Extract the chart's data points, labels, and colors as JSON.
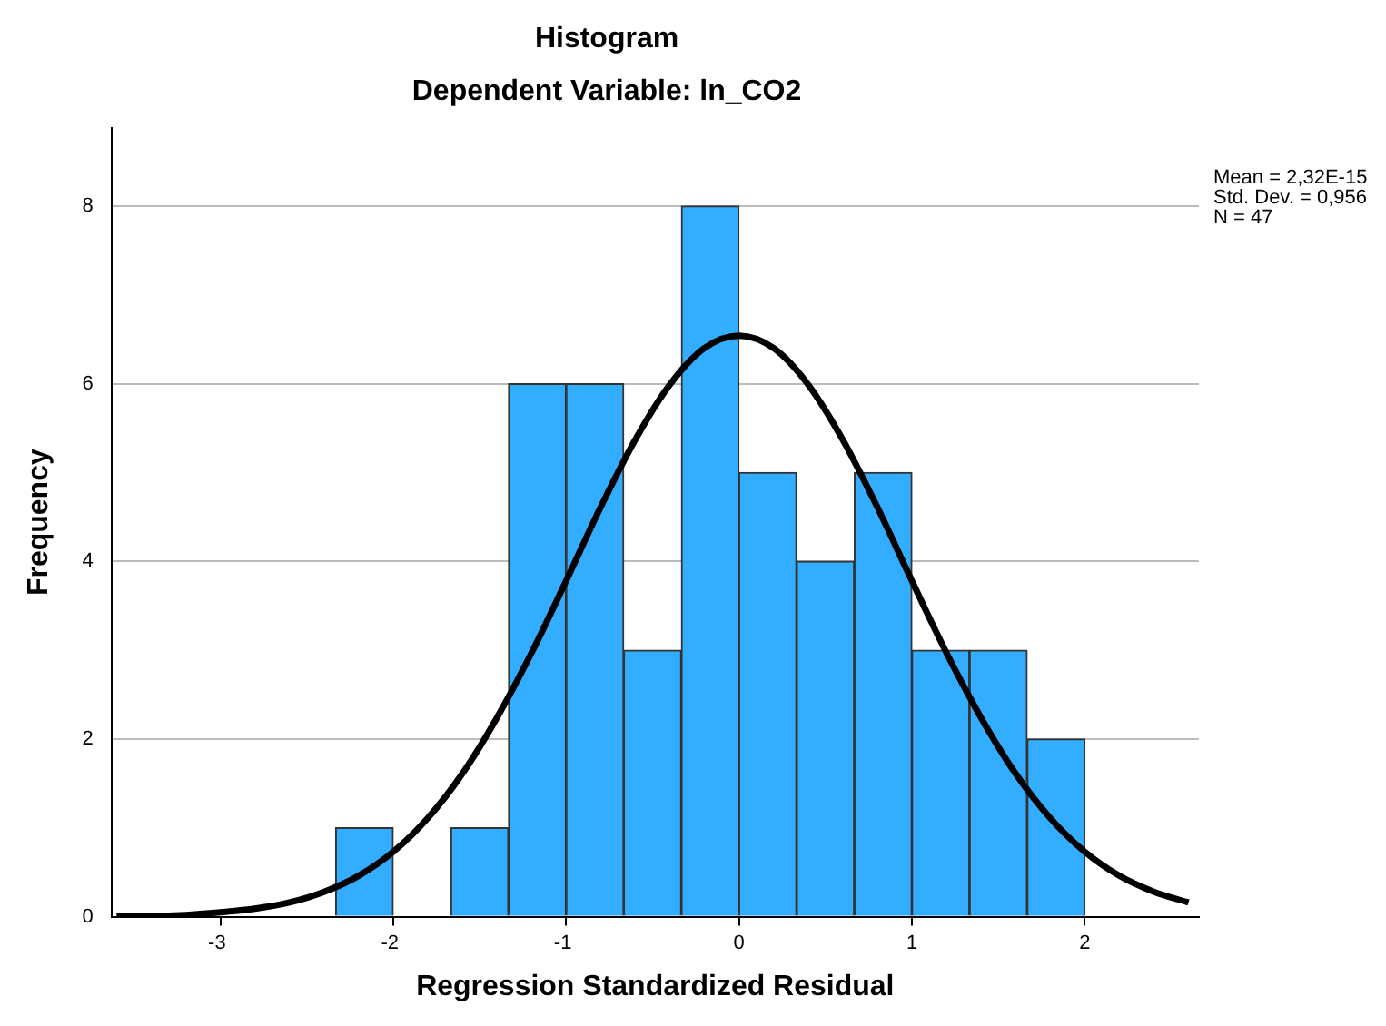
{
  "chart_data": {
    "type": "histogram",
    "title": "Histogram",
    "subtitle": "Dependent Variable: ln_CO2",
    "xlabel": "Regression Standardized Residual",
    "ylabel": "Frequency",
    "bins": [
      -2.333,
      -2,
      -1.667,
      -1.333,
      -1,
      -0.667,
      -0.333,
      0,
      0.333,
      0.667,
      1,
      1.333,
      1.667,
      2
    ],
    "values": [
      1,
      0,
      1,
      6,
      6,
      3,
      8,
      5,
      4,
      5,
      3,
      3,
      2
    ],
    "color": "#33adff",
    "series": [
      {
        "type": "line",
        "color": "#000000",
        "x": [
          -3.6,
          -3.4,
          -3.2,
          -3,
          -2.8,
          -2.6,
          -2.4,
          -2.2,
          -2,
          -1.8,
          -1.6,
          -1.4,
          -1.2,
          -1,
          -0.8,
          -0.6,
          -0.4,
          -0.2,
          0,
          0.2,
          0.4,
          0.6,
          0.8,
          1,
          1.2,
          1.4,
          1.6,
          1.8,
          2,
          2.2,
          2.4,
          2.6
        ],
        "values": [
          0.01,
          0.01,
          0.02,
          0.05,
          0.09,
          0.16,
          0.28,
          0.46,
          0.73,
          1.11,
          1.61,
          2.24,
          2.97,
          3.78,
          4.61,
          5.37,
          5.99,
          6.4,
          6.54,
          6.4,
          5.99,
          5.37,
          4.61,
          3.78,
          2.97,
          2.24,
          1.61,
          1.11,
          0.73,
          0.46,
          0.28,
          0.16
        ]
      }
    ],
    "xlim": [
      -3.63,
      2.66
    ],
    "ylim": [
      0,
      8.88
    ],
    "xticks": [
      -3,
      -2,
      -1,
      0,
      1,
      2
    ],
    "yticks": [
      0,
      2,
      4,
      6,
      8
    ],
    "grid": "y",
    "legend": false,
    "marker": "none",
    "annotations": [
      "Mean = 2,32E-15",
      "Std. Dev. = 0,956",
      "N = 47"
    ]
  }
}
